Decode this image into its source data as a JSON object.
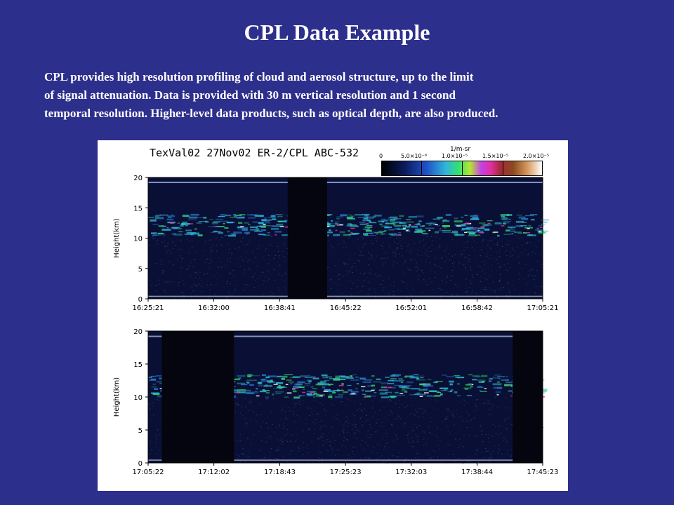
{
  "slide": {
    "title": "CPL Data Example",
    "description_lines": [
      "CPL provides high resolution profiling of cloud and aerosol structure, up to the limit",
      "of signal attenuation.  Data is provided with 30 m vertical resolution and 1 second",
      "temporal resolution.  Higher-level data products, such as optical depth, are also produced."
    ]
  },
  "figure": {
    "title": "TexVal02 27Nov02 ER-2/CPL ABC-532",
    "colorbar": {
      "unit": "1/m-sr",
      "tick_labels": [
        "0",
        "5.0×10⁻⁶",
        "1.0×10⁻⁵",
        "1.5×10⁻⁵",
        "2.0×10⁻⁵"
      ],
      "tick_values": [
        0,
        5e-06,
        1e-05,
        1.5e-05,
        2e-05
      ]
    },
    "colors": {
      "background": "#2d2f8c",
      "plot_bg": "#0a1035",
      "cloud_cyan": "#31b6d8",
      "cloud_green": "#35e070",
      "cloud_magenta": "#e12fa3",
      "dropout": "#05050f"
    }
  },
  "chart_data": [
    {
      "type": "heatmap",
      "title": "",
      "xlabel": "",
      "ylabel": "Height(km)",
      "ylim": [
        0,
        20
      ],
      "y_ticks": [
        0,
        5,
        10,
        15,
        20
      ],
      "x_tick_labels": [
        "16:25:21",
        "16:32:00",
        "16:38:41",
        "16:45:22",
        "16:52:01",
        "16:58:42",
        "17:05:21"
      ],
      "x_range": [
        "16:25:21",
        "17:05:21"
      ],
      "cloud_layer_km": [
        10.5,
        14
      ],
      "data_gaps": [
        [
          "16:39:30",
          "16:43:30"
        ]
      ]
    },
    {
      "type": "heatmap",
      "title": "",
      "xlabel": "",
      "ylabel": "Height(km)",
      "ylim": [
        0,
        20
      ],
      "y_ticks": [
        0,
        5,
        10,
        15,
        20
      ],
      "x_tick_labels": [
        "17:05:22",
        "17:12:02",
        "17:18:43",
        "17:25:23",
        "17:32:03",
        "17:38:44",
        "17:45:23"
      ],
      "x_range": [
        "17:05:22",
        "17:45:23"
      ],
      "cloud_layer_km": [
        10,
        13.5
      ],
      "data_gaps": [
        [
          "17:06:45",
          "17:14:05"
        ],
        [
          "17:42:20",
          "17:45:23"
        ]
      ]
    }
  ]
}
